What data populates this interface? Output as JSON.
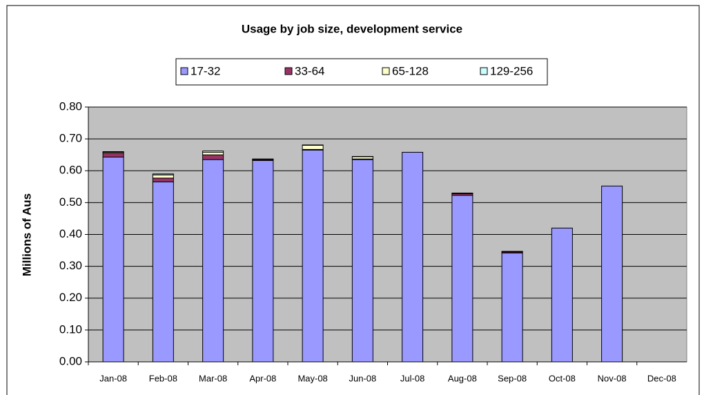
{
  "chart_data": {
    "type": "stacked_bar",
    "title": "Usage by job size, development service",
    "y_label": "Millions of Aus",
    "categories": [
      "Jan-08",
      "Feb-08",
      "Mar-08",
      "Apr-08",
      "May-08",
      "Jun-08",
      "Jul-08",
      "Aug-08",
      "Sep-08",
      "Oct-08",
      "Nov-08",
      "Dec-08"
    ],
    "series": [
      {
        "name": "17-32",
        "color": "#9999ff",
        "values": [
          0.643,
          0.565,
          0.635,
          0.632,
          0.665,
          0.635,
          0.658,
          0.523,
          0.342,
          0.42,
          0.552,
          null
        ]
      },
      {
        "name": "33-64",
        "color": "#993366",
        "values": [
          0.012,
          0.012,
          0.015,
          0.003,
          0.002,
          0.002,
          0,
          0.005,
          0.003,
          0,
          0,
          null
        ]
      },
      {
        "name": "65-128",
        "color": "#ffffcc",
        "values": [
          0.003,
          0.01,
          0.008,
          0.001,
          0.013,
          0.007,
          0,
          0.001,
          0.001,
          0,
          0,
          null
        ]
      },
      {
        "name": "129-256",
        "color": "#ccffff",
        "values": [
          0.002,
          0.003,
          0.004,
          0.001,
          0.001,
          0.001,
          0,
          0.001,
          0.001,
          0,
          0,
          null
        ]
      }
    ],
    "ylim": [
      0,
      0.8
    ],
    "yticks": [
      {
        "value": 0,
        "label": "0.00"
      },
      {
        "value": 0.1,
        "label": "0.10"
      },
      {
        "value": 0.2,
        "label": "0.20"
      },
      {
        "value": 0.3,
        "label": "0.30"
      },
      {
        "value": 0.4,
        "label": "0.40"
      },
      {
        "value": 0.5,
        "label": "0.50"
      },
      {
        "value": 0.6,
        "label": "0.60"
      },
      {
        "value": 0.7,
        "label": "0.70"
      },
      {
        "value": 0.8,
        "label": "0.80"
      }
    ],
    "grid": true,
    "legend": "top",
    "plot_background": "#c0c0c0"
  }
}
